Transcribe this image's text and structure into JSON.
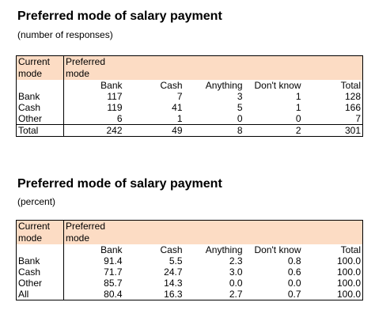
{
  "table1": {
    "title": "Preferred mode of salary payment",
    "subtitle": "(number of responses)",
    "row_header": [
      "Current",
      "mode"
    ],
    "col_group_header": [
      "Preferred",
      "mode"
    ],
    "columns": [
      "Bank",
      "Cash",
      "Anything",
      "Don't know",
      "Total"
    ],
    "rows": [
      {
        "label": "Bank",
        "values": [
          "117",
          "7",
          "3",
          "1",
          "128"
        ]
      },
      {
        "label": "Cash",
        "values": [
          "119",
          "41",
          "5",
          "1",
          "166"
        ]
      },
      {
        "label": "Other",
        "values": [
          "6",
          "1",
          "0",
          "0",
          "7"
        ]
      }
    ],
    "total_row": {
      "label": "Total",
      "values": [
        "242",
        "49",
        "8",
        "2",
        "301"
      ]
    }
  },
  "table2": {
    "title": "Preferred mode of salary payment",
    "subtitle": "(percent)",
    "row_header": [
      "Current",
      "mode"
    ],
    "col_group_header": [
      "Preferred",
      "mode"
    ],
    "columns": [
      "Bank",
      "Cash",
      "Anything",
      "Don't know",
      "Total"
    ],
    "rows": [
      {
        "label": "Bank",
        "values": [
          "91.4",
          "5.5",
          "2.3",
          "0.8",
          "100.0"
        ]
      },
      {
        "label": "Cash",
        "values": [
          "71.7",
          "24.7",
          "3.0",
          "0.6",
          "100.0"
        ]
      },
      {
        "label": "Other",
        "values": [
          "85.7",
          "14.3",
          "0.0",
          "0.0",
          "100.0"
        ]
      },
      {
        "label": "All",
        "values": [
          "80.4",
          "16.3",
          "2.7",
          "0.7",
          "100.0"
        ]
      }
    ]
  },
  "colors": {
    "header_fill": "#fcdcc4",
    "border": "#000000"
  }
}
